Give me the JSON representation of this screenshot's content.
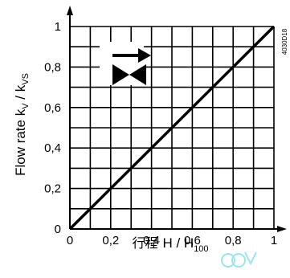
{
  "chart_data": {
    "type": "line",
    "xlabel": {
      "prefix": "行程",
      "main": "H / H",
      "sub": "100"
    },
    "ylabel": {
      "main1": "Flow rate k",
      "sub1": "V",
      "main2": " / k",
      "sub2": "VS"
    },
    "xlim": [
      0,
      1
    ],
    "ylim": [
      0,
      1
    ],
    "xticks": [
      "0",
      "0,2",
      "0,4",
      "0,6",
      "0,8",
      "1"
    ],
    "yticks": [
      "0",
      "0,2",
      "0,4",
      "0,6",
      "0,8",
      "1"
    ],
    "grid": true,
    "series": [
      {
        "x": [
          0,
          1
        ],
        "y": [
          0,
          1
        ]
      }
    ],
    "side_code": "4030D18",
    "inset": "valve-symbol-with-arrow",
    "watermark": "logo"
  }
}
